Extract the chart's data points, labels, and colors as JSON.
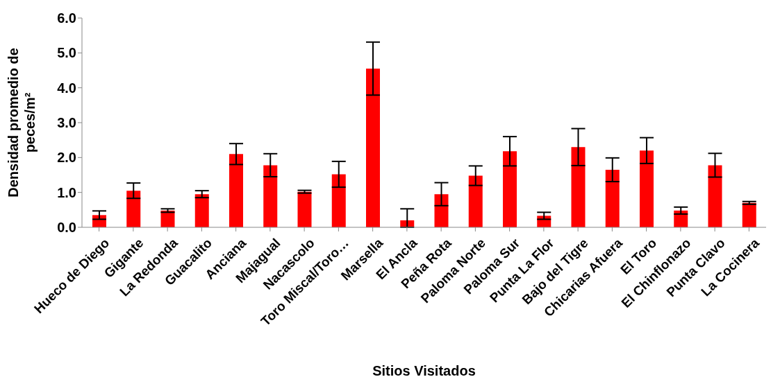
{
  "chart_data": {
    "type": "bar",
    "xlabel": "Sitios Visitados",
    "ylabel": "Densidad promedio de peces/m²",
    "categories": [
      "Hueco de Diego",
      "Gigante",
      "La Redonda",
      "Guacalito",
      "Anciana",
      "Majagual",
      "Nacascolo",
      "Toro Miscal/Toro…",
      "Marsella",
      "El Ancla",
      "Peña Rota",
      "Paloma Norte",
      "Paloma Sur",
      "Punta La Flor",
      "Bajo del Tigre",
      "Chicarias Afuera",
      "El Toro",
      "El Chinflonazo",
      "Punta Clavo",
      "La Cocinera"
    ],
    "values": [
      0.35,
      1.05,
      0.48,
      0.95,
      2.1,
      1.78,
      1.02,
      1.52,
      4.55,
      0.2,
      0.95,
      1.48,
      2.18,
      0.33,
      2.3,
      1.65,
      2.2,
      0.48,
      1.78,
      0.7
    ],
    "errors": [
      [
        0.23,
        0.47
      ],
      [
        0.83,
        1.27
      ],
      [
        0.43,
        0.53
      ],
      [
        0.85,
        1.05
      ],
      [
        1.8,
        2.4
      ],
      [
        1.45,
        2.11
      ],
      [
        0.98,
        1.06
      ],
      [
        1.15,
        1.89
      ],
      [
        3.79,
        5.31
      ],
      [
        0,
        0.53
      ],
      [
        0.62,
        1.28
      ],
      [
        1.2,
        1.76
      ],
      [
        1.76,
        2.6
      ],
      [
        0.23,
        0.43
      ],
      [
        1.77,
        2.83
      ],
      [
        1.31,
        1.99
      ],
      [
        1.83,
        2.57
      ],
      [
        0.38,
        0.58
      ],
      [
        1.44,
        2.12
      ],
      [
        0.66,
        0.74
      ]
    ],
    "color": "#ff0000",
    "ylim": [
      0,
      6
    ],
    "yticks": [
      {
        "value": 0,
        "label": "0.0"
      },
      {
        "value": 1,
        "label": "1.0"
      },
      {
        "value": 2,
        "label": "2.0"
      },
      {
        "value": 3,
        "label": "3.0"
      },
      {
        "value": 4,
        "label": "4.0"
      },
      {
        "value": 5,
        "label": "5.0"
      },
      {
        "value": 6,
        "label": "6.0"
      }
    ],
    "grid": false,
    "legend": false
  }
}
